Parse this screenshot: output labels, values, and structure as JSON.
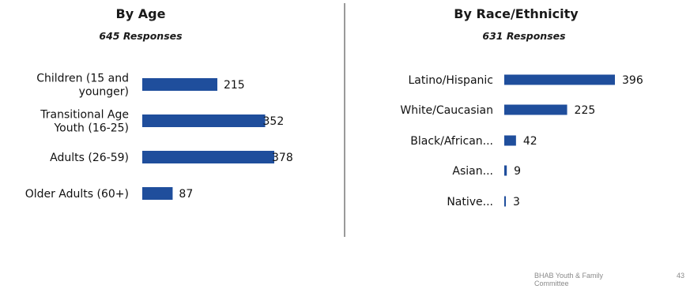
{
  "chart_data": [
    {
      "type": "bar",
      "orientation": "horizontal",
      "title": "By Age",
      "subtitle": "645 Responses",
      "categories": [
        [
          "Children (15 and",
          "younger)"
        ],
        [
          "Transitional Age",
          "Youth (16-25)"
        ],
        [
          "Adults (26-59)"
        ],
        [
          "Older Adults (60+)"
        ]
      ],
      "values": [
        215,
        352,
        378,
        87
      ],
      "value_labels": [
        "215",
        "352",
        "378",
        "87"
      ],
      "bar_color": "#1f4e9c",
      "xlim": [
        0,
        378
      ],
      "grid": false
    },
    {
      "type": "bar",
      "orientation": "horizontal",
      "title": "By Race/Ethnicity",
      "subtitle": "631 Responses",
      "categories": [
        [
          "Latino/Hispanic"
        ],
        [
          "White/Caucasian"
        ],
        [
          "Black/African..."
        ],
        [
          "Asian..."
        ],
        [
          "Native..."
        ]
      ],
      "values": [
        396,
        225,
        42,
        9,
        3
      ],
      "value_labels": [
        "396",
        "225",
        "42",
        "9",
        "3"
      ],
      "bar_color": "#1f4e9c",
      "xlim": [
        0,
        396
      ],
      "grid": false
    }
  ],
  "footer": {
    "committee": "BHAB Youth & Family Committee",
    "page_number": "43"
  }
}
